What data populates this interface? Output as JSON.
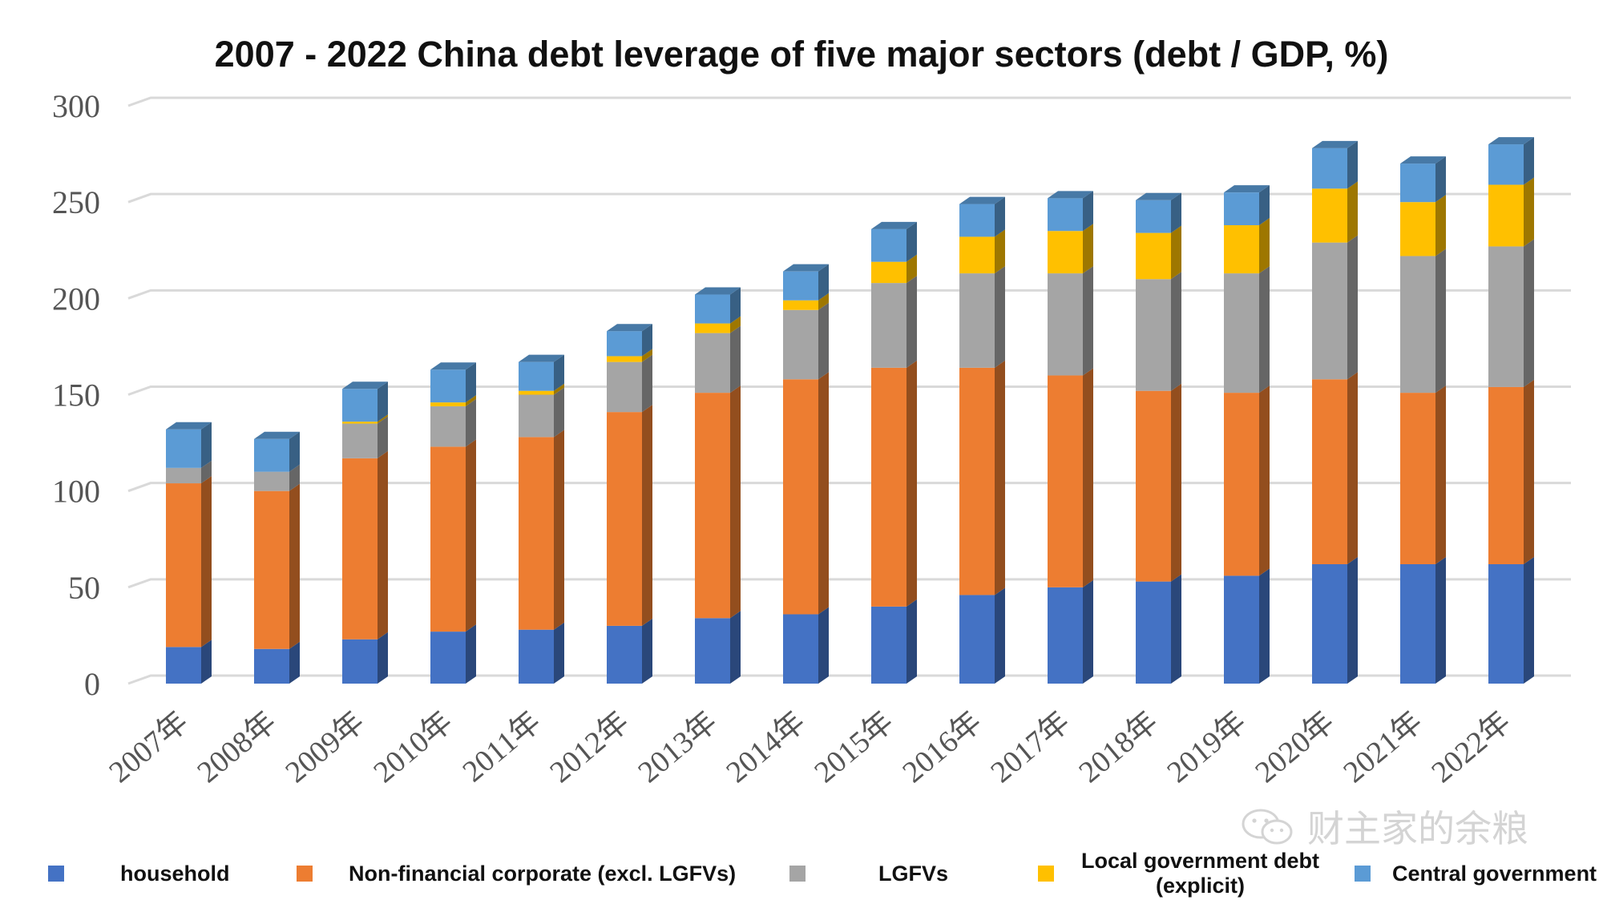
{
  "chart_data": {
    "type": "bar",
    "stacked": true,
    "title": "2007 - 2022 China debt leverage of five major sectors (debt / GDP, %)",
    "xlabel": "",
    "ylabel": "",
    "ylim": [
      0,
      300
    ],
    "yticks": [
      0,
      50,
      100,
      150,
      200,
      250,
      300
    ],
    "grid": true,
    "legend_position": "bottom",
    "categories": [
      "2007年",
      "2008年",
      "2009年",
      "2010年",
      "2011年",
      "2012年",
      "2013年",
      "2014年",
      "2015年",
      "2016年",
      "2017年",
      "2018年",
      "2019年",
      "2020年",
      "2021年",
      "2022年"
    ],
    "series": [
      {
        "name": "household",
        "color": "#4472C4",
        "values": [
          19,
          18,
          23,
          27,
          28,
          30,
          34,
          36,
          40,
          46,
          50,
          53,
          56,
          62,
          62,
          62
        ]
      },
      {
        "name": "Non-financial corporate (excl. LGFVs)",
        "color": "#ED7D31",
        "values": [
          85,
          82,
          94,
          96,
          100,
          111,
          117,
          122,
          124,
          118,
          110,
          99,
          95,
          96,
          89,
          92
        ]
      },
      {
        "name": "LGFVs",
        "color": "#A5A5A5",
        "values": [
          8,
          10,
          18,
          21,
          22,
          26,
          31,
          36,
          44,
          49,
          53,
          58,
          62,
          71,
          71,
          73
        ]
      },
      {
        "name": "Local government debt\n(explicit)",
        "color": "#FFC000",
        "values": [
          0,
          0,
          1,
          2,
          2,
          3,
          5,
          5,
          11,
          19,
          22,
          24,
          25,
          28,
          28,
          32
        ]
      },
      {
        "name": "Central government",
        "color": "#5B9BD5",
        "values": [
          20,
          17,
          17,
          17,
          15,
          13,
          15,
          15,
          17,
          17,
          17,
          17,
          17,
          21,
          20,
          21
        ]
      }
    ]
  },
  "watermark": {
    "text": "财主家的余粮",
    "icon": "wechat-icon"
  }
}
